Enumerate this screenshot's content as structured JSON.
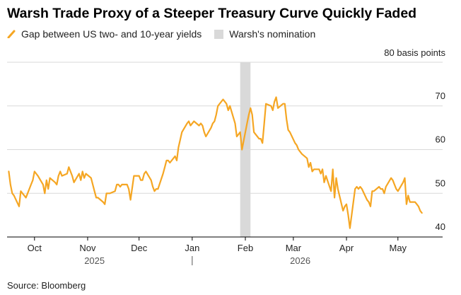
{
  "chart_data": {
    "type": "line",
    "title": "Warsh Trade Proxy of a Steeper Treasury Curve Quickly Faded",
    "unit_label": "80 basis points",
    "legend_position": "top-left",
    "grid": true,
    "ylim": [
      40,
      80
    ],
    "yticks": [
      40,
      50,
      60,
      70,
      80
    ],
    "ytick_labels": [
      "40",
      "50",
      "60",
      "70",
      ""
    ],
    "xlim": [
      "2025-09-15",
      "2026-05-18"
    ],
    "month_ticks": [
      {
        "date": "2025-10-01",
        "label": "Oct"
      },
      {
        "date": "2025-11-01",
        "label": "Nov"
      },
      {
        "date": "2025-12-01",
        "label": "Dec"
      },
      {
        "date": "2026-01-01",
        "label": "Jan"
      },
      {
        "date": "2026-02-01",
        "label": "Feb"
      },
      {
        "date": "2026-03-01",
        "label": "Mar"
      },
      {
        "date": "2026-04-01",
        "label": "Apr"
      },
      {
        "date": "2026-05-01",
        "label": "May"
      }
    ],
    "year_labels": [
      {
        "label": "2025",
        "date": "2025-11-05"
      },
      {
        "label": "2026",
        "date": "2026-03-05"
      }
    ],
    "year_divider": "2026-01-01",
    "shaded_region": {
      "name": "Warsh's nomination",
      "start": "2026-01-29",
      "end": "2026-02-04",
      "color": "#d9d9d9"
    },
    "series": [
      {
        "name": "Gap between US two- and 10-year yields",
        "color": "#f5a623",
        "points": [
          [
            "2025-09-16",
            55
          ],
          [
            "2025-09-17",
            52
          ],
          [
            "2025-09-18",
            50
          ],
          [
            "2025-09-19",
            49.5
          ],
          [
            "2025-09-22",
            47
          ],
          [
            "2025-09-23",
            50.5
          ],
          [
            "2025-09-24",
            50
          ],
          [
            "2025-09-25",
            49.5
          ],
          [
            "2025-09-26",
            49
          ],
          [
            "2025-09-29",
            52
          ],
          [
            "2025-09-30",
            53
          ],
          [
            "2025-10-01",
            55
          ],
          [
            "2025-10-02",
            54.5
          ],
          [
            "2025-10-03",
            54
          ],
          [
            "2025-10-06",
            52
          ],
          [
            "2025-10-07",
            50
          ],
          [
            "2025-10-08",
            53
          ],
          [
            "2025-10-09",
            51
          ],
          [
            "2025-10-10",
            53.5
          ],
          [
            "2025-10-13",
            52.5
          ],
          [
            "2025-10-14",
            52
          ],
          [
            "2025-10-15",
            54
          ],
          [
            "2025-10-16",
            55
          ],
          [
            "2025-10-17",
            54
          ],
          [
            "2025-10-20",
            54.5
          ],
          [
            "2025-10-21",
            56
          ],
          [
            "2025-10-22",
            55
          ],
          [
            "2025-10-23",
            54
          ],
          [
            "2025-10-24",
            52.5
          ],
          [
            "2025-10-27",
            54.5
          ],
          [
            "2025-10-28",
            53
          ],
          [
            "2025-10-29",
            55
          ],
          [
            "2025-10-30",
            53.5
          ],
          [
            "2025-10-31",
            54.5
          ],
          [
            "2025-11-03",
            53.5
          ],
          [
            "2025-11-04",
            52
          ],
          [
            "2025-11-05",
            50.5
          ],
          [
            "2025-11-06",
            49
          ],
          [
            "2025-11-07",
            49
          ],
          [
            "2025-11-10",
            48
          ],
          [
            "2025-11-11",
            47.5
          ],
          [
            "2025-11-12",
            50
          ],
          [
            "2025-11-13",
            50
          ],
          [
            "2025-11-14",
            50
          ],
          [
            "2025-11-17",
            50.5
          ],
          [
            "2025-11-18",
            52
          ],
          [
            "2025-11-19",
            52
          ],
          [
            "2025-11-20",
            51.5
          ],
          [
            "2025-11-21",
            52
          ],
          [
            "2025-11-24",
            52
          ],
          [
            "2025-11-25",
            51
          ],
          [
            "2025-11-26",
            48.5
          ],
          [
            "2025-11-28",
            54
          ],
          [
            "2025-12-01",
            54
          ],
          [
            "2025-12-02",
            53
          ],
          [
            "2025-12-03",
            53
          ],
          [
            "2025-12-04",
            54.5
          ],
          [
            "2025-12-05",
            55
          ],
          [
            "2025-12-08",
            53
          ],
          [
            "2025-12-09",
            51.5
          ],
          [
            "2025-12-10",
            50.5
          ],
          [
            "2025-12-11",
            51
          ],
          [
            "2025-12-12",
            51
          ],
          [
            "2025-12-15",
            54.5
          ],
          [
            "2025-12-16",
            56
          ],
          [
            "2025-12-17",
            57.5
          ],
          [
            "2025-12-18",
            57.5
          ],
          [
            "2025-12-19",
            57
          ],
          [
            "2025-12-22",
            58.5
          ],
          [
            "2025-12-23",
            57.5
          ],
          [
            "2025-12-24",
            60.5
          ],
          [
            "2025-12-26",
            64
          ],
          [
            "2025-12-29",
            66
          ],
          [
            "2025-12-30",
            66.5
          ],
          [
            "2025-12-31",
            65.5
          ],
          [
            "2026-01-02",
            66.5
          ],
          [
            "2026-01-05",
            65.5
          ],
          [
            "2026-01-06",
            66
          ],
          [
            "2026-01-07",
            65.5
          ],
          [
            "2026-01-08",
            64
          ],
          [
            "2026-01-09",
            63
          ],
          [
            "2026-01-12",
            65
          ],
          [
            "2026-01-13",
            66
          ],
          [
            "2026-01-14",
            66.5
          ],
          [
            "2026-01-15",
            68
          ],
          [
            "2026-01-16",
            70
          ],
          [
            "2026-01-19",
            71.5
          ],
          [
            "2026-01-20",
            71
          ],
          [
            "2026-01-21",
            70.5
          ],
          [
            "2026-01-22",
            69
          ],
          [
            "2026-01-23",
            70
          ],
          [
            "2026-01-26",
            66
          ],
          [
            "2026-01-27",
            63
          ],
          [
            "2026-01-28",
            63.5
          ],
          [
            "2026-01-29",
            64
          ],
          [
            "2026-01-30",
            60
          ],
          [
            "2026-02-02",
            66
          ],
          [
            "2026-02-03",
            68
          ],
          [
            "2026-02-04",
            69.5
          ],
          [
            "2026-02-05",
            68
          ],
          [
            "2026-02-06",
            64
          ],
          [
            "2026-02-09",
            62.5
          ],
          [
            "2026-02-10",
            62.5
          ],
          [
            "2026-02-11",
            61.5
          ],
          [
            "2026-02-12",
            66
          ],
          [
            "2026-02-13",
            70.5
          ],
          [
            "2026-02-16",
            70
          ],
          [
            "2026-02-17",
            69
          ],
          [
            "2026-02-18",
            71
          ],
          [
            "2026-02-19",
            72
          ],
          [
            "2026-02-20",
            69.5
          ],
          [
            "2026-02-23",
            70.5
          ],
          [
            "2026-02-24",
            70.5
          ],
          [
            "2026-02-25",
            67
          ],
          [
            "2026-02-26",
            64.5
          ],
          [
            "2026-02-27",
            64
          ],
          [
            "2026-03-02",
            61.5
          ],
          [
            "2026-03-03",
            61
          ],
          [
            "2026-03-04",
            60
          ],
          [
            "2026-03-05",
            59.5
          ],
          [
            "2026-03-06",
            59
          ],
          [
            "2026-03-09",
            58
          ],
          [
            "2026-03-10",
            56
          ],
          [
            "2026-03-11",
            57
          ],
          [
            "2026-03-12",
            55
          ],
          [
            "2026-03-13",
            55.5
          ],
          [
            "2026-03-16",
            55.5
          ],
          [
            "2026-03-17",
            54.5
          ],
          [
            "2026-03-18",
            55.5
          ],
          [
            "2026-03-19",
            52.5
          ],
          [
            "2026-03-20",
            54
          ],
          [
            "2026-03-23",
            50.5
          ],
          [
            "2026-03-24",
            55.5
          ],
          [
            "2026-03-25",
            49
          ],
          [
            "2026-03-26",
            53.5
          ],
          [
            "2026-03-27",
            51
          ],
          [
            "2026-03-30",
            46
          ],
          [
            "2026-03-31",
            47
          ],
          [
            "2026-04-01",
            47.5
          ],
          [
            "2026-04-02",
            45
          ],
          [
            "2026-04-03",
            42
          ],
          [
            "2026-04-06",
            51
          ],
          [
            "2026-04-07",
            51.5
          ],
          [
            "2026-04-08",
            51
          ],
          [
            "2026-04-09",
            51.5
          ],
          [
            "2026-04-10",
            51
          ],
          [
            "2026-04-13",
            48.5
          ],
          [
            "2026-04-14",
            48
          ],
          [
            "2026-04-15",
            47
          ],
          [
            "2026-04-16",
            50.5
          ],
          [
            "2026-04-17",
            50.5
          ],
          [
            "2026-04-20",
            51.5
          ],
          [
            "2026-04-21",
            51
          ],
          [
            "2026-04-22",
            51
          ],
          [
            "2026-04-23",
            50
          ],
          [
            "2026-04-24",
            51.5
          ],
          [
            "2026-04-27",
            53.5
          ],
          [
            "2026-04-28",
            53
          ],
          [
            "2026-04-29",
            52
          ],
          [
            "2026-04-30",
            51
          ],
          [
            "2026-05-01",
            50.5
          ],
          [
            "2026-05-04",
            52.5
          ],
          [
            "2026-05-05",
            53.5
          ],
          [
            "2026-05-06",
            47.5
          ],
          [
            "2026-05-07",
            49.5
          ],
          [
            "2026-05-08",
            48
          ],
          [
            "2026-05-11",
            48
          ],
          [
            "2026-05-12",
            47.5
          ],
          [
            "2026-05-13",
            47
          ],
          [
            "2026-05-14",
            46
          ],
          [
            "2026-05-15",
            45.5
          ]
        ]
      }
    ],
    "source": "Source: Bloomberg"
  }
}
